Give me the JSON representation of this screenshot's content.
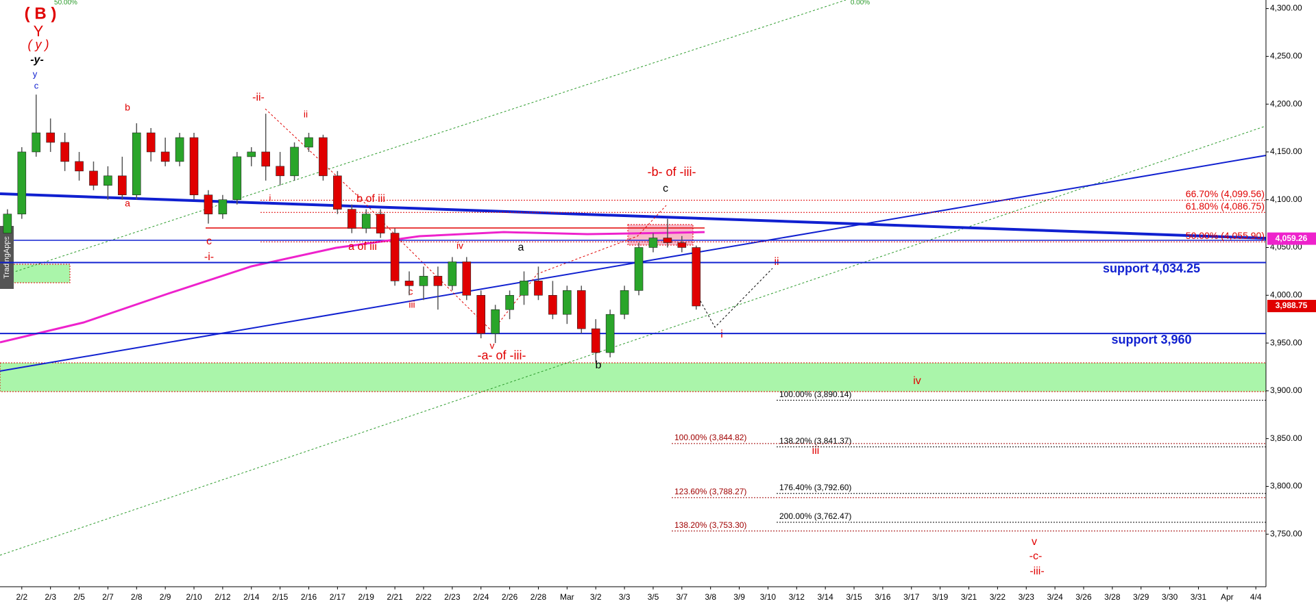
{
  "chart_data": {
    "type": "candlestick",
    "categories": [
      "2/2",
      "2/3",
      "2/5",
      "2/7",
      "2/8",
      "2/9",
      "2/10",
      "2/12",
      "2/14",
      "2/15",
      "2/16",
      "2/17",
      "2/19",
      "2/21",
      "2/22",
      "2/23",
      "2/24",
      "2/26",
      "2/28",
      "Mar",
      "3/2",
      "3/3",
      "3/5",
      "3/7",
      "3/8",
      "3/9",
      "3/10",
      "3/12",
      "3/14",
      "3/15",
      "3/16",
      "3/17",
      "3/19",
      "3/21",
      "3/22",
      "3/23",
      "3/24",
      "3/26",
      "3/28",
      "3/29",
      "3/30",
      "3/31",
      "Apr",
      "4/4"
    ],
    "candles": {
      "x": [
        -0.5,
        0,
        0.5,
        1,
        1.5,
        2,
        2.5,
        3,
        3.5,
        4,
        4.5,
        5,
        5.5,
        6,
        6.5,
        7,
        7.5,
        8,
        8.5,
        9,
        9.5,
        10,
        10.5,
        11,
        11.5,
        12,
        12.5,
        13,
        13.5,
        14,
        14.5,
        15,
        15.5,
        16,
        16.5,
        17,
        17.5,
        18,
        18.5,
        19,
        19.5,
        20,
        20.5,
        21,
        21.5,
        22,
        22.5,
        23,
        23.5
      ],
      "open": [
        4065,
        4085,
        4150,
        4170,
        4160,
        4140,
        4130,
        4115,
        4125,
        4105,
        4170,
        4150,
        4140,
        4165,
        4105,
        4085,
        4100,
        4145,
        4150,
        4135,
        4125,
        4155,
        4165,
        4125,
        4090,
        4070,
        4085,
        4065,
        4015,
        4010,
        4020,
        4010,
        4035,
        4000,
        3960,
        3985,
        4000,
        4015,
        4000,
        3980,
        4005,
        3965,
        3940,
        3980,
        4005,
        4050,
        4060,
        4055,
        4050
      ],
      "high": [
        4090,
        4155,
        4210,
        4185,
        4170,
        4150,
        4140,
        4135,
        4145,
        4180,
        4175,
        4165,
        4170,
        4170,
        4110,
        4105,
        4150,
        4155,
        4190,
        4150,
        4160,
        4170,
        4168,
        4130,
        4095,
        4090,
        4090,
        4070,
        4025,
        4030,
        4030,
        4040,
        4040,
        4005,
        3990,
        4005,
        4025,
        4030,
        4015,
        4010,
        4010,
        3975,
        3985,
        4010,
        4055,
        4065,
        4080,
        4062,
        4052
      ],
      "low": [
        4055,
        4080,
        4145,
        4150,
        4130,
        4120,
        4110,
        4100,
        4100,
        4100,
        4140,
        4135,
        4135,
        4100,
        4075,
        4080,
        4095,
        4135,
        4120,
        4115,
        4120,
        4150,
        4120,
        4085,
        4065,
        4065,
        4060,
        4010,
        4000,
        3995,
        3985,
        4005,
        3995,
        3955,
        3950,
        3975,
        3990,
        3995,
        3975,
        3970,
        3960,
        3930,
        3935,
        3975,
        4000,
        4045,
        4050,
        4045,
        3985
      ],
      "close": [
        4085,
        4150,
        4170,
        4160,
        4140,
        4130,
        4115,
        4125,
        4105,
        4170,
        4150,
        4140,
        4165,
        4105,
        4085,
        4100,
        4145,
        4150,
        4135,
        4125,
        4155,
        4165,
        4125,
        4090,
        4070,
        4085,
        4065,
        4015,
        4010,
        4020,
        4010,
        4035,
        4000,
        3960,
        3985,
        4000,
        4015,
        4000,
        3980,
        4005,
        3965,
        3940,
        3980,
        4005,
        4050,
        4060,
        4055,
        4050,
        3988.75
      ]
    },
    "colors": {
      "up": "#2aa52a",
      "down": "#e00000"
    },
    "ylim": [
      3695,
      4309
    ],
    "yticks": [
      {
        "value": 3750,
        "label": "3,750.00"
      },
      {
        "value": 3800,
        "label": "3,800.00"
      },
      {
        "value": 3850,
        "label": "3,850.00"
      },
      {
        "value": 3900,
        "label": "3,900.00"
      },
      {
        "value": 3950,
        "label": "3,950.00"
      },
      {
        "value": 4000,
        "label": "4,000.00"
      },
      {
        "value": 4050,
        "label": "4,050.00"
      },
      {
        "value": 4100,
        "label": "4,100.00"
      },
      {
        "value": 4150,
        "label": "4,150.00"
      },
      {
        "value": 4200,
        "label": "4,200.00"
      },
      {
        "value": 4250,
        "label": "4,250.00"
      },
      {
        "value": 4300,
        "label": "4,300.00"
      }
    ],
    "levels": [
      {
        "value": 4034.25,
        "label": "support 4,034.25",
        "color": "#1020d0"
      },
      {
        "value": 3960,
        "label": "support 3,960",
        "color": "#1020d0"
      }
    ],
    "fib_groups": [
      {
        "color": "#e00000",
        "levels": [
          {
            "value": 4099.56,
            "label": "66.70% (4,099.56)"
          },
          {
            "value": 4086.75,
            "label": "61.80% (4,086.75)"
          },
          {
            "value": 4055.9,
            "label": "50.00% (4,055.90)"
          }
        ]
      },
      {
        "color": "#000000",
        "levels": [
          {
            "value": 3890.14,
            "label": "100.00% (3,890.14)"
          },
          {
            "value": 3841.37,
            "label": "138.20% (3,841.37)"
          },
          {
            "value": 3792.6,
            "label": "176.40% (3,792.60)"
          },
          {
            "value": 3762.47,
            "label": "200.00% (3,762.47)"
          }
        ]
      },
      {
        "color": "#a00000",
        "levels": [
          {
            "value": 3844.82,
            "label": "100.00% (3,844.82)"
          },
          {
            "value": 3788.27,
            "label": "123.60% (3,788.27)"
          },
          {
            "value": 3753.3,
            "label": "138.20% (3,753.30)"
          }
        ]
      }
    ],
    "price_tags": [
      {
        "value": 4059.26,
        "label": "4,059.26",
        "color": "#ee22cc"
      },
      {
        "value": 3988.75,
        "label": "3,988.75",
        "color": "#e00000"
      }
    ],
    "annotations": [
      "( B )",
      "Y",
      "( y )",
      "-y-",
      "y",
      "c",
      "b",
      "a",
      "-ii-",
      "ii",
      "c",
      "-i-",
      "i",
      "b of iii",
      "a of iii",
      "iv",
      "c",
      "iii",
      "a",
      "v",
      "-a- of -iii-",
      "b",
      "-b- of -iii-",
      "c",
      "ii",
      "i",
      "iv",
      "iii",
      "v",
      "-c-",
      "-iii-",
      "50.00%",
      "0.00%",
      "b"
    ],
    "watermark": "TradingApps"
  }
}
